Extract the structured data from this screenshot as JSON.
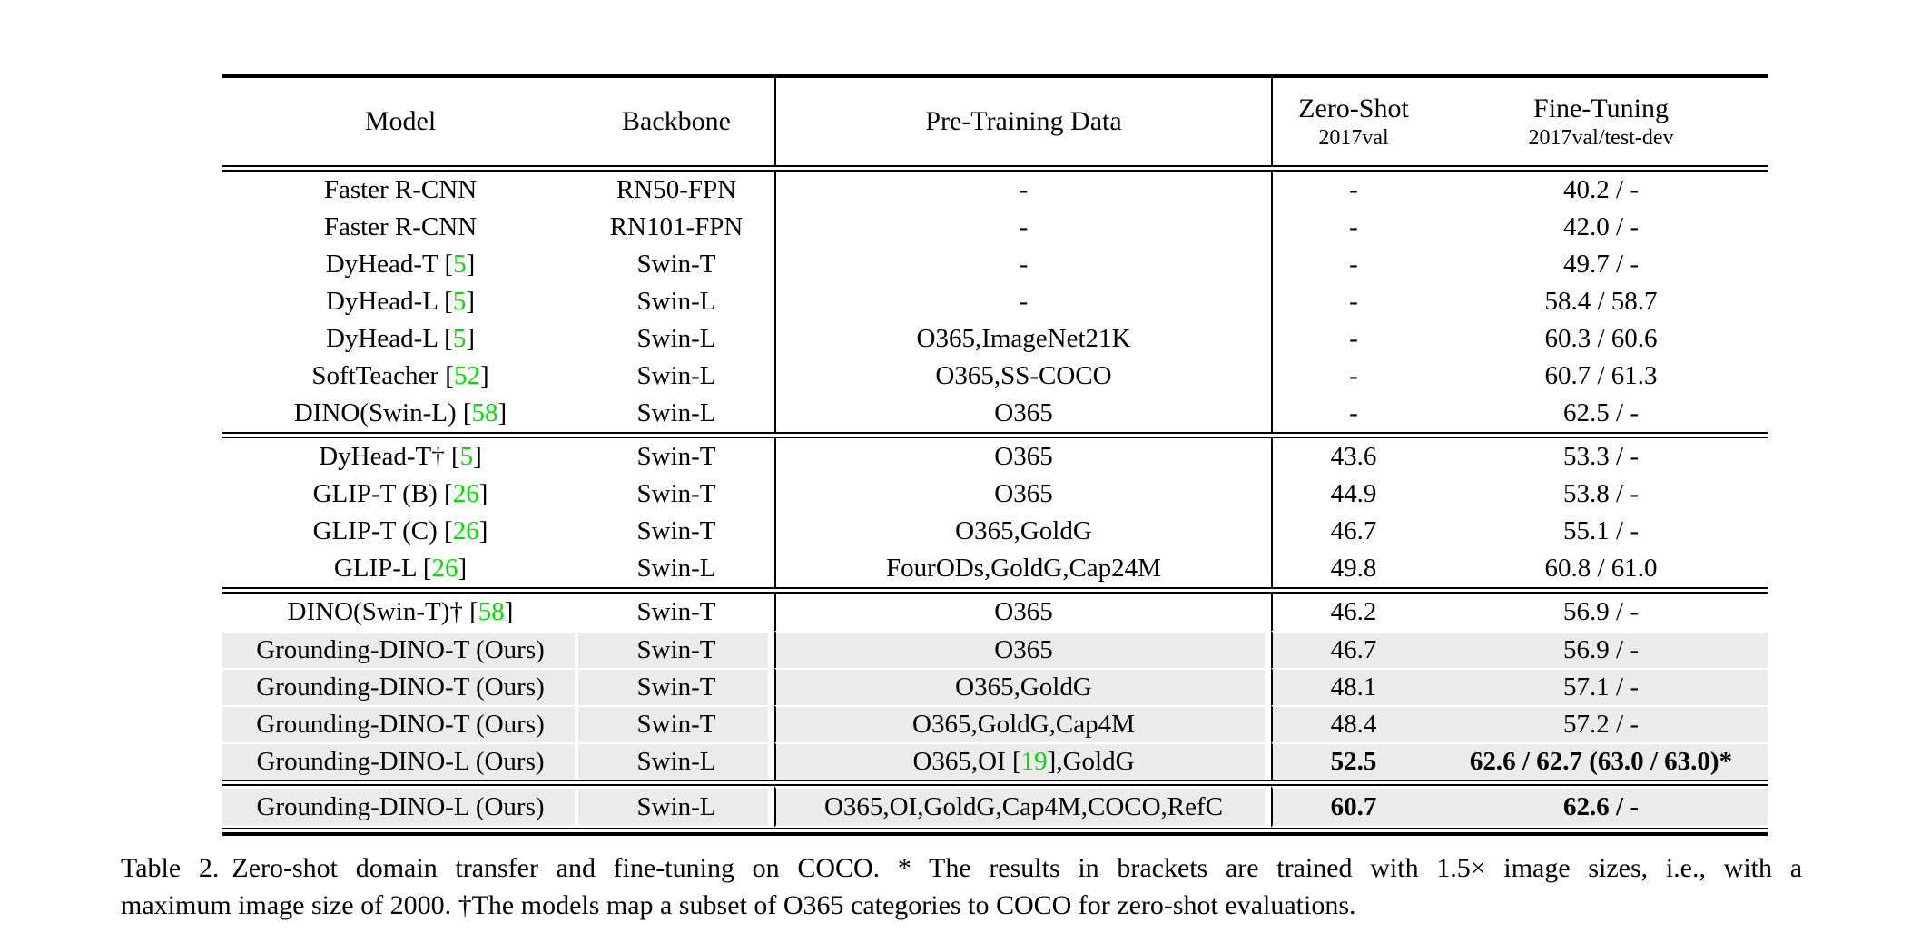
{
  "page": {
    "background": "#ffffff"
  },
  "table": {
    "colors": {
      "highlight": "#ebebeb",
      "citation": "#00dd00",
      "rule": "#000000"
    },
    "header": {
      "model": "Model",
      "backbone": "Backbone",
      "pretrain": "Pre-Training Data",
      "zeroshot_line1": "Zero-Shot",
      "zeroshot_line2": "2017val",
      "finetune_line1": "Fine-Tuning",
      "finetune_line2": "2017val/test-dev"
    },
    "sections": [
      {
        "rows": [
          {
            "model": "Faster R-CNN",
            "backbone": "RN50-FPN",
            "pretrain": "-",
            "zeroshot": "-",
            "finetune": "40.2 / -",
            "highlight": false,
            "bold": false
          },
          {
            "model": "Faster R-CNN",
            "backbone": "RN101-FPN",
            "pretrain": "-",
            "zeroshot": "-",
            "finetune": "42.0 / -",
            "highlight": false,
            "bold": false
          },
          {
            "model": "DyHead-T [5]",
            "backbone": "Swin-T",
            "pretrain": "-",
            "zeroshot": "-",
            "finetune": "49.7 / -",
            "highlight": false,
            "bold": false
          },
          {
            "model": "DyHead-L [5]",
            "backbone": "Swin-L",
            "pretrain": "-",
            "zeroshot": "-",
            "finetune": "58.4 / 58.7",
            "highlight": false,
            "bold": false
          },
          {
            "model": "DyHead-L [5]",
            "backbone": "Swin-L",
            "pretrain": "O365,ImageNet21K",
            "zeroshot": "-",
            "finetune": "60.3 / 60.6",
            "highlight": false,
            "bold": false
          },
          {
            "model": "SoftTeacher [52]",
            "backbone": "Swin-L",
            "pretrain": "O365,SS-COCO",
            "zeroshot": "-",
            "finetune": "60.7 / 61.3",
            "highlight": false,
            "bold": false
          },
          {
            "model": "DINO(Swin-L) [58]",
            "backbone": "Swin-L",
            "pretrain": "O365",
            "zeroshot": "-",
            "finetune": "62.5 / -",
            "highlight": false,
            "bold": false
          }
        ]
      },
      {
        "rows": [
          {
            "model": "DyHead-T† [5]",
            "backbone": "Swin-T",
            "pretrain": "O365",
            "zeroshot": "43.6",
            "finetune": "53.3 / -",
            "highlight": false,
            "bold": false
          },
          {
            "model": "GLIP-T (B) [26]",
            "backbone": "Swin-T",
            "pretrain": "O365",
            "zeroshot": "44.9",
            "finetune": "53.8 / -",
            "highlight": false,
            "bold": false
          },
          {
            "model": "GLIP-T (C) [26]",
            "backbone": "Swin-T",
            "pretrain": "O365,GoldG",
            "zeroshot": "46.7",
            "finetune": "55.1 / -",
            "highlight": false,
            "bold": false
          },
          {
            "model": "GLIP-L [26]",
            "backbone": "Swin-L",
            "pretrain": "FourODs,GoldG,Cap24M",
            "zeroshot": "49.8",
            "finetune": "60.8 / 61.0",
            "highlight": false,
            "bold": false
          }
        ]
      },
      {
        "rows": [
          {
            "model": "DINO(Swin-T)† [58]",
            "backbone": "Swin-T",
            "pretrain": "O365",
            "zeroshot": "46.2",
            "finetune": "56.9 / -",
            "highlight": false,
            "bold": false
          },
          {
            "model": "Grounding-DINO-T (Ours)",
            "backbone": "Swin-T",
            "pretrain": "O365",
            "zeroshot": "46.7",
            "finetune": "56.9 / -",
            "highlight": true,
            "bold": false
          },
          {
            "model": "Grounding-DINO-T (Ours)",
            "backbone": "Swin-T",
            "pretrain": "O365,GoldG",
            "zeroshot": "48.1",
            "finetune": "57.1 / -",
            "highlight": true,
            "bold": false
          },
          {
            "model": "Grounding-DINO-T (Ours)",
            "backbone": "Swin-T",
            "pretrain": "O365,GoldG,Cap4M",
            "zeroshot": "48.4",
            "finetune": "57.2 / -",
            "highlight": true,
            "bold": false
          },
          {
            "model": "Grounding-DINO-L (Ours)",
            "backbone": "Swin-L",
            "pretrain": "O365,OI [19],GoldG",
            "zeroshot": "52.5",
            "finetune": "62.6 / 62.7 (63.0 / 63.0)*",
            "highlight": true,
            "bold": true
          }
        ]
      },
      {
        "rows": [
          {
            "model": "Grounding-DINO-L (Ours)",
            "backbone": "Swin-L",
            "pretrain": "O365,OI,GoldG,Cap4M,COCO,RefC",
            "zeroshot": "60.7",
            "finetune": "62.6 / -",
            "highlight": true,
            "bold": true,
            "pad": true
          }
        ]
      }
    ]
  },
  "caption": {
    "label": "Table 2.",
    "line1": "Zero-shot domain transfer and fine-tuning on COCO. * The results in brackets are trained with 1.5× image sizes, i.e., with a",
    "line2": "maximum image size of 2000. †The models map a subset of O365 categories to COCO for zero-shot evaluations."
  }
}
